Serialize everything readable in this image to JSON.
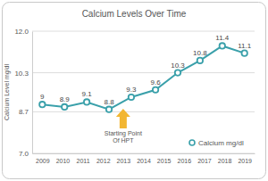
{
  "chart_data": {
    "type": "line",
    "title": "Calcium Levels Over Time",
    "ylabel": "Calcium Level mg/dl",
    "x": [
      2009,
      2010.1,
      2011.2,
      2012.3,
      2013.4,
      2014.6,
      2015.7,
      2016.8,
      2017.9,
      2019
    ],
    "xlim": [
      2008.5,
      2019.5
    ],
    "xticks": [
      2009,
      2010,
      2011,
      2012,
      2013,
      2014,
      2015,
      2016,
      2017,
      2018,
      2019
    ],
    "ylim": [
      7,
      12
    ],
    "yticks": [
      {
        "value": 7,
        "label": "7.0"
      },
      8.7,
      10.3,
      {
        "value": 12,
        "label": "12.0"
      }
    ],
    "grid": true,
    "legend": "lower right",
    "data_labels": true,
    "series": [
      {
        "name": "Calcium mg/dl",
        "color": "#3aa0aa",
        "marker": "circle",
        "line_style": "solid",
        "values": [
          9,
          8.9,
          9.1,
          8.8,
          9.3,
          9.6,
          10.3,
          10.8,
          11.4,
          11.1
        ]
      }
    ],
    "annotations": [
      {
        "text": "Starting Point Of HPT",
        "x": 2013
      }
    ]
  }
}
